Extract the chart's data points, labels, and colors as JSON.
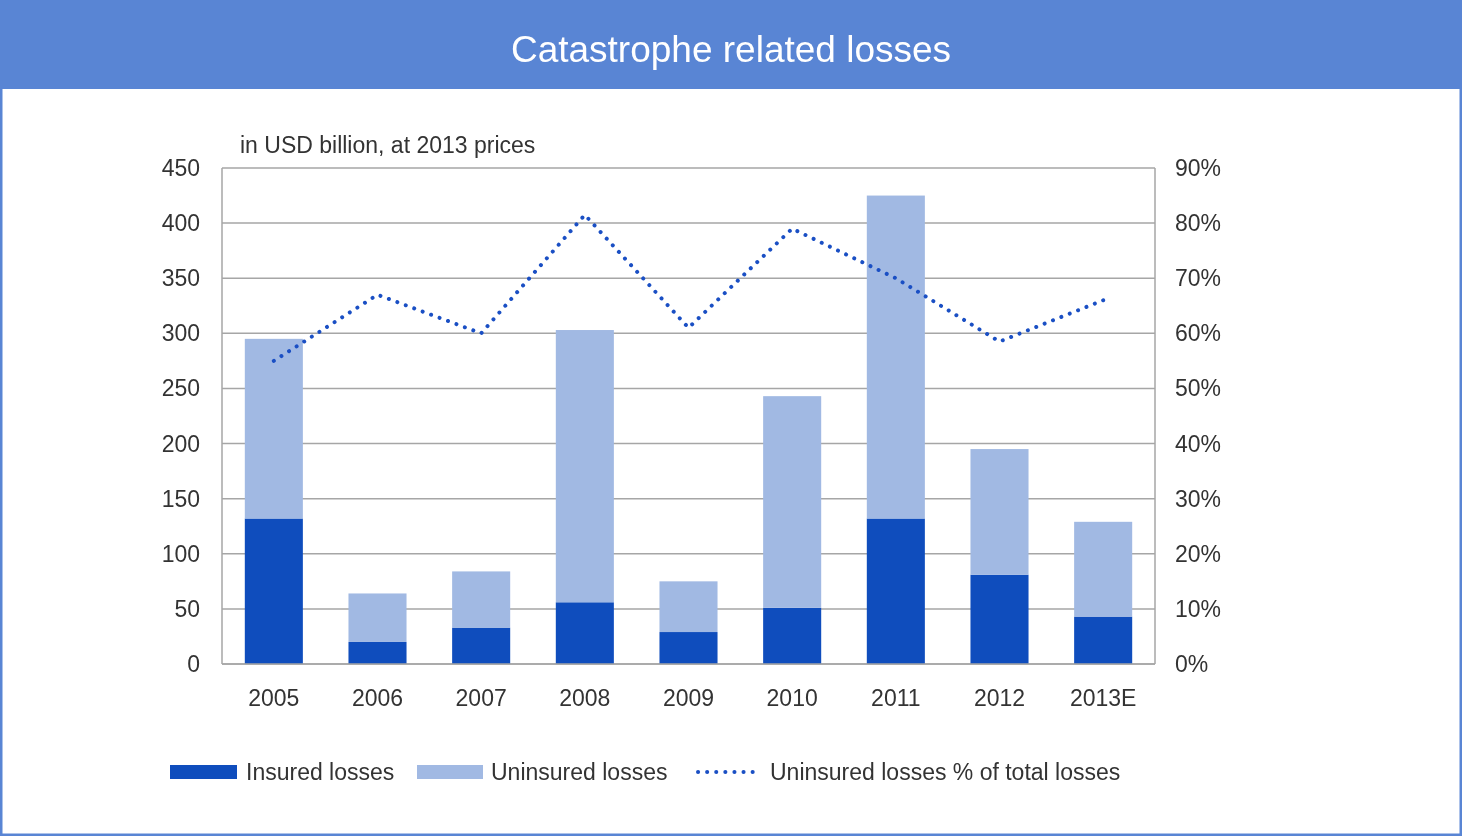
{
  "chart_data": {
    "type": "bar",
    "title": "Catastrophe related losses",
    "ylabel": "in USD billion, at 2013 prices",
    "categories": [
      "2005",
      "2006",
      "2007",
      "2008",
      "2009",
      "2010",
      "2011",
      "2012",
      "2013E"
    ],
    "stacked": true,
    "series": [
      {
        "name": "Insured losses",
        "color": "#0f4dbd",
        "values": [
          132,
          20,
          33,
          56,
          29,
          51,
          132,
          81,
          43
        ]
      },
      {
        "name": "Uninsured losses",
        "color": "#a1b9e3",
        "values": [
          163,
          44,
          51,
          247,
          46,
          192,
          293,
          114,
          86
        ]
      },
      {
        "name": "Uninsured losses % of total losses",
        "type": "line",
        "axis": "y2",
        "color": "#1a4fc4",
        "line_style": "dotted",
        "marker": "none",
        "values": [
          55,
          67,
          60,
          81.5,
          61,
          79,
          70,
          58.5,
          66
        ]
      }
    ],
    "ylim": [
      0,
      450
    ],
    "yticks": [
      0,
      50,
      100,
      150,
      200,
      250,
      300,
      350,
      400,
      450
    ],
    "y2lim": [
      0,
      90
    ],
    "y2ticks": [
      {
        "value": 0,
        "label": "0%"
      },
      {
        "value": 10,
        "label": "10%"
      },
      {
        "value": 20,
        "label": "20%"
      },
      {
        "value": 30,
        "label": "30%"
      },
      {
        "value": 40,
        "label": "40%"
      },
      {
        "value": 50,
        "label": "50%"
      },
      {
        "value": 60,
        "label": "60%"
      },
      {
        "value": 70,
        "label": "70%"
      },
      {
        "value": 80,
        "label": "80%"
      },
      {
        "value": 90,
        "label": "90%"
      }
    ],
    "grid": "y",
    "legend": "bottom"
  }
}
